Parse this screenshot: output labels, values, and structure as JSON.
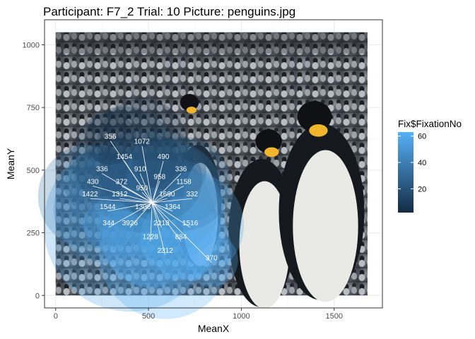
{
  "chart_data": {
    "type": "scatter",
    "title": "Participant: F7_2 Trial: 10 Picture: penguins.jpg",
    "xlabel": "MeanX",
    "ylabel": "MeanY",
    "xlim": [
      -60,
      1760
    ],
    "ylim": [
      -50,
      1100
    ],
    "x_ticks": [
      0,
      500,
      1000,
      1500
    ],
    "y_ticks": [
      0,
      250,
      500,
      750,
      1000
    ],
    "background_image": {
      "name": "penguins.jpg",
      "x_range": [
        0,
        1680
      ],
      "y_range": [
        0,
        1050
      ]
    },
    "grid": true,
    "legend": {
      "title": "Fix$FixationNo",
      "position": "right",
      "ticks": [
        20,
        40,
        60
      ],
      "range": [
        2,
        63
      ],
      "color_low": "#132B43",
      "color_high": "#56B1F7"
    },
    "fixation_center": {
      "x": 520,
      "y": 370
    },
    "points": [
      {
        "label": "356",
        "x": 295,
        "y": 625,
        "size": 356,
        "fix": 2
      },
      {
        "label": "1072",
        "x": 465,
        "y": 605,
        "size": 1072,
        "fix": 5
      },
      {
        "label": "1454",
        "x": 370,
        "y": 545,
        "size": 1454,
        "fix": 8
      },
      {
        "label": "490",
        "x": 580,
        "y": 545,
        "size": 490,
        "fix": 11
      },
      {
        "label": "336",
        "x": 250,
        "y": 495,
        "size": 336,
        "fix": 14
      },
      {
        "label": "910",
        "x": 455,
        "y": 495,
        "size": 910,
        "fix": 17
      },
      {
        "label": "958",
        "x": 560,
        "y": 465,
        "size": 958,
        "fix": 20
      },
      {
        "label": "336",
        "x": 675,
        "y": 495,
        "size": 336,
        "fix": 23
      },
      {
        "label": "430",
        "x": 200,
        "y": 445,
        "size": 430,
        "fix": 26
      },
      {
        "label": "372",
        "x": 355,
        "y": 445,
        "size": 372,
        "fix": 29
      },
      {
        "label": "1158",
        "x": 690,
        "y": 445,
        "size": 1158,
        "fix": 32
      },
      {
        "label": "950",
        "x": 465,
        "y": 420,
        "size": 950,
        "fix": 35
      },
      {
        "label": "1422",
        "x": 185,
        "y": 395,
        "size": 1422,
        "fix": 38
      },
      {
        "label": "1312",
        "x": 345,
        "y": 395,
        "size": 1312,
        "fix": 41
      },
      {
        "label": "1690",
        "x": 600,
        "y": 395,
        "size": 1690,
        "fix": 44
      },
      {
        "label": "332",
        "x": 735,
        "y": 395,
        "size": 332,
        "fix": 47
      },
      {
        "label": "1544",
        "x": 280,
        "y": 345,
        "size": 1544,
        "fix": 50
      },
      {
        "label": "1306",
        "x": 470,
        "y": 345,
        "size": 1306,
        "fix": 53
      },
      {
        "label": "1364",
        "x": 630,
        "y": 345,
        "size": 1364,
        "fix": 55
      },
      {
        "label": "344",
        "x": 285,
        "y": 280,
        "size": 344,
        "fix": 56
      },
      {
        "label": "3926",
        "x": 400,
        "y": 280,
        "size": 3926,
        "fix": 57
      },
      {
        "label": "2218",
        "x": 570,
        "y": 280,
        "size": 2218,
        "fix": 58
      },
      {
        "label": "1516",
        "x": 725,
        "y": 280,
        "size": 1516,
        "fix": 59
      },
      {
        "label": "1228",
        "x": 510,
        "y": 225,
        "size": 1228,
        "fix": 60
      },
      {
        "label": "884",
        "x": 675,
        "y": 225,
        "size": 884,
        "fix": 61
      },
      {
        "label": "2312",
        "x": 590,
        "y": 170,
        "size": 2312,
        "fix": 62
      },
      {
        "label": "370",
        "x": 840,
        "y": 140,
        "size": 370,
        "fix": 63
      }
    ]
  }
}
